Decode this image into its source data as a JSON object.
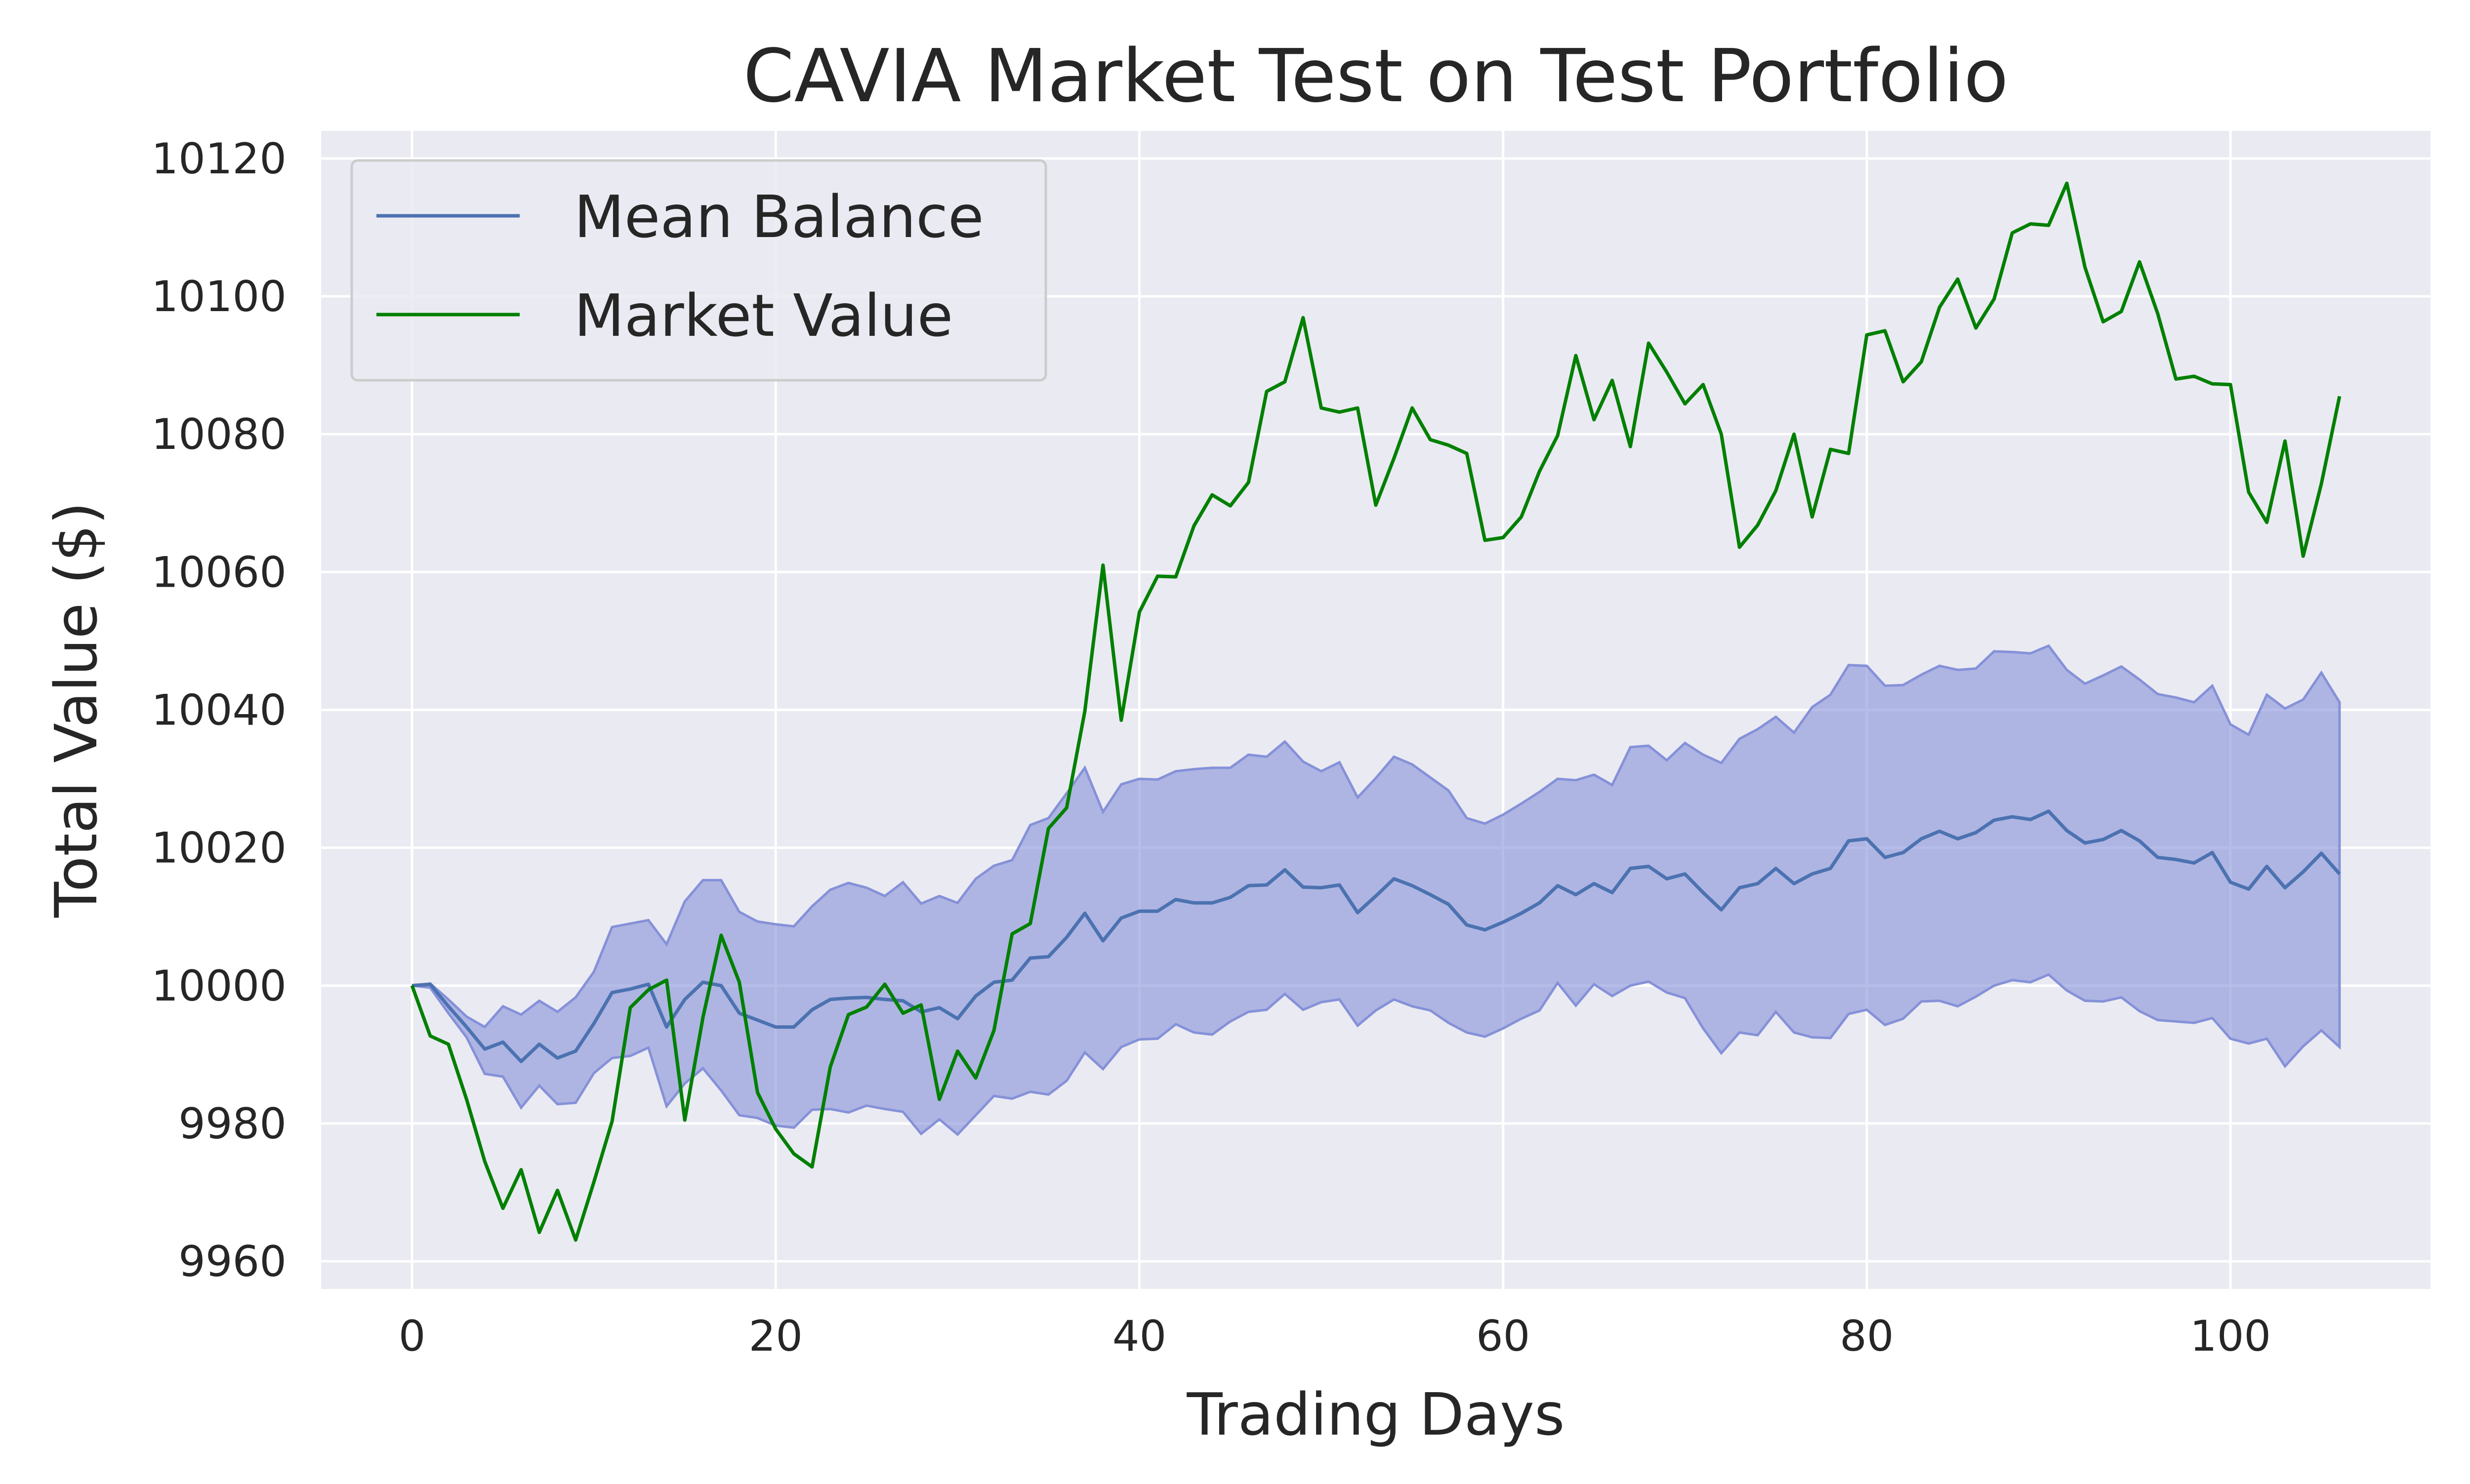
{
  "chart_data": {
    "type": "line",
    "title": "CAVIA Market Test on Test Portfolio",
    "xlabel": "Trading Days",
    "ylabel": "Total Value ($)",
    "xlim": [
      -5,
      111
    ],
    "ylim": [
      9956,
      10124
    ],
    "x_ticks": [
      0,
      20,
      40,
      60,
      80,
      100
    ],
    "y_ticks": [
      9960,
      9980,
      10000,
      10020,
      10040,
      10060,
      10080,
      10100,
      10120
    ],
    "grid": true,
    "legend_position": "top-left",
    "colors": {
      "background": "#eaeaf2",
      "grid": "#ffffff",
      "mean_line": "#4c72b0",
      "band_fill": "#8591d8",
      "market_line": "#008000"
    },
    "series": [
      {
        "name": "Mean Balance",
        "color": "#4c72b0",
        "x_start": 0,
        "values": [
          10000,
          10000.2,
          9997,
          9994,
          9990.8,
          9991.8,
          9989,
          9991.5,
          9989.5,
          9990.5,
          9994.5,
          9999,
          9999.5,
          10000.2,
          9994,
          9998,
          10000.5,
          10000,
          9996,
          9995,
          9994,
          9994,
          9996.5,
          9998,
          9998.2,
          9998.3,
          9998,
          9997.8,
          9996.2,
          9996.8,
          9995.2,
          9998.5,
          10000.5,
          10000.8,
          10004,
          10004.2,
          10007,
          10010.5,
          10006.5,
          10009.8,
          10010.8,
          10010.8,
          10012.5,
          10012,
          10012,
          10012.8,
          10014.5,
          10014.6,
          10016.8,
          10014.3,
          10014.2,
          10014.6,
          10010.6,
          10013,
          10015.5,
          10014.5,
          10013.2,
          10011.8,
          10008.8,
          10008.1,
          10009.2,
          10010.5,
          10012,
          10014.5,
          10013.2,
          10014.8,
          10013.5,
          10017,
          10017.3,
          10015.5,
          10016.2,
          10013.5,
          10011,
          10014.2,
          10014.8,
          10017,
          10014.8,
          10016.2,
          10017,
          10021,
          10021.3,
          10018.6,
          10019.3,
          10021.3,
          10022.4,
          10021.3,
          10022.2,
          10024,
          10024.5,
          10024.1,
          10025.3,
          10022.5,
          10020.7,
          10021.2,
          10022.5,
          10021,
          10018.6,
          10018.3,
          10017.8,
          10019.3,
          10015,
          10014,
          10017.3,
          10014.2,
          10016.5,
          10019.2,
          10016.2
        ]
      },
      {
        "name": "Market Value",
        "color": "#008000",
        "x_start": 0,
        "values": [
          10000,
          9992.7,
          9991.5,
          9983.5,
          9974.5,
          9967.7,
          9973.3,
          9964.2,
          9970.3,
          9963.1,
          9971.5,
          9980.3,
          9996.8,
          9999.4,
          10000.8,
          9980.5,
          9995.4,
          10007.3,
          10000.5,
          9984.5,
          9979.2,
          9975.6,
          9973.7,
          9988.2,
          9995.8,
          9996.9,
          10000.2,
          9996,
          9997.2,
          9983.5,
          9990.5,
          9986.6,
          9993.5,
          10007.5,
          10009,
          10022.8,
          10025.8,
          10039.8,
          10061,
          10038.5,
          10054.2,
          10059.4,
          10059.3,
          10066.7,
          10071.2,
          10069.6,
          10073,
          10086.2,
          10087.6,
          10096.9,
          10083.8,
          10083.2,
          10083.8,
          10069.7,
          10076.5,
          10083.8,
          10079.2,
          10078.4,
          10077.2,
          10064.6,
          10065,
          10068,
          10074.6,
          10079.8,
          10091.4,
          10082.1,
          10087.8,
          10078.2,
          10093.2,
          10089,
          10084.4,
          10087.2,
          10080,
          10063.6,
          10066.8,
          10071.8,
          10080,
          10068,
          10077.8,
          10077.2,
          10094.4,
          10095,
          10087.6,
          10090.5,
          10098.4,
          10102.5,
          10095.4,
          10099.6,
          10109.2,
          10110.5,
          10110.3,
          10116.4,
          10104.2,
          10096.3,
          10097.8,
          10105,
          10097.5,
          10088,
          10088.4,
          10087.3,
          10087.2,
          10071.6,
          10067.2,
          10079,
          10062.3,
          10072.8,
          10085.5
        ]
      }
    ],
    "band": {
      "x_start": 0,
      "upper": [
        10000,
        10000.3,
        9998,
        9995.5,
        9994,
        9997,
        9995.8,
        9997.8,
        9996.2,
        9998.3,
        10002,
        10008.5,
        10009,
        10009.5,
        10006,
        10012.2,
        10015.3,
        10015.3,
        10010.7,
        10009.3,
        10008.9,
        10008.6,
        10011.5,
        10013.9,
        10014.9,
        10014.2,
        10013,
        10015,
        10011.9,
        10013,
        10012,
        10015.5,
        10017.4,
        10018.2,
        10023.3,
        10024.3,
        10027.9,
        10031.6,
        10025.2,
        10029.2,
        10030,
        10029.9,
        10031.1,
        10031.4,
        10031.6,
        10031.6,
        10033.5,
        10033.2,
        10035.4,
        10032.5,
        10031.1,
        10032.4,
        10027.3,
        10030.1,
        10033.2,
        10032.1,
        10030.2,
        10028.3,
        10024.3,
        10023.5,
        10024.8,
        10026.4,
        10028.1,
        10030,
        10029.8,
        10030.6,
        10029.1,
        10034.6,
        10034.8,
        10032.7,
        10035.2,
        10033.5,
        10032.3,
        10035.8,
        10037.2,
        10039,
        10036.7,
        10040.4,
        10042.2,
        10046.5,
        10046.4,
        10043.5,
        10043.6,
        10045.1,
        10046.4,
        10045.8,
        10046,
        10048.5,
        10048.4,
        10048.2,
        10049.3,
        10045.8,
        10043.8,
        10045,
        10046.3,
        10044.4,
        10042.3,
        10041.8,
        10041.1,
        10043.5,
        10037.9,
        10036.4,
        10042.2,
        10040.2,
        10041.5,
        10045.4,
        10041.1
      ]
    },
    "band_lower": {
      "values": [
        10000,
        9999.7,
        9996,
        9992.5,
        9987.2,
        9986.8,
        9982.3,
        9985.5,
        9982.8,
        9983,
        9987.3,
        9989.5,
        9989.8,
        9991,
        9982.5,
        9985.8,
        9988,
        9984.8,
        9981.2,
        9980.8,
        9979.7,
        9979.4,
        9982,
        9982.1,
        9981.6,
        9982.6,
        9982.1,
        9981.7,
        9978.5,
        9980.6,
        9978.4,
        9981.2,
        9984,
        9983.6,
        9984.6,
        9984.2,
        9986.2,
        9990.3,
        9987.9,
        9991.1,
        9992.2,
        9992.3,
        9994.4,
        9993.2,
        9992.9,
        9994.8,
        9996.2,
        9996.5,
        9998.8,
        9996.5,
        9997.6,
        9998,
        9994.2,
        9996.4,
        9998,
        9997,
        9996.4,
        9994.6,
        9993.2,
        9992.6,
        9993.8,
        9995.2,
        9996.4,
        10000.4,
        9997.1,
        10000.2,
        9998.5,
        10000,
        10000.6,
        9999,
        9998.2,
        9993.8,
        9990.2,
        9993.2,
        9992.8,
        9996.2,
        9993.2,
        9992.5,
        9992.4,
        9995.9,
        9996.5,
        9994.3,
        9995.2,
        9997.7,
        9997.8,
        9997,
        9998.4,
        10000,
        10000.8,
        10000.5,
        10001.6,
        9999.3,
        9997.8,
        9997.7,
        9998.3,
        9996.3,
        9995,
        9994.8,
        9994.6,
        9995.3,
        9992.3,
        9991.6,
        9992.3,
        9988.3,
        9991.2,
        9993.5,
        9991.1
      ]
    }
  }
}
